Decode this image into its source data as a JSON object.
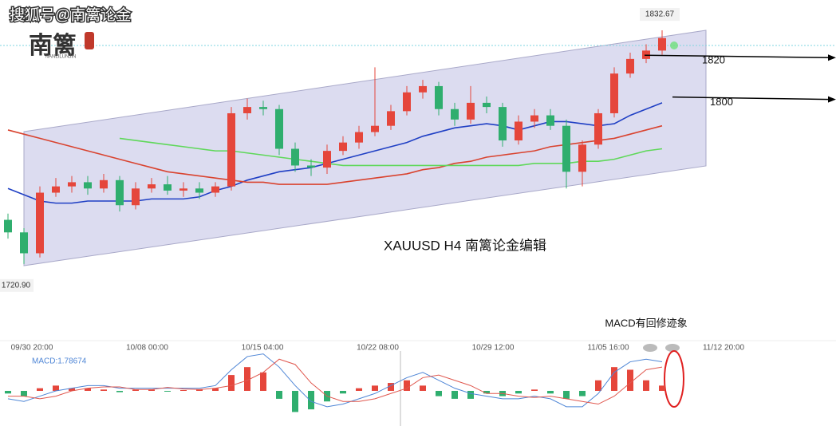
{
  "watermark": "搜狐号@南篱论金",
  "logo": {
    "title": "南篱",
    "subtitle": "NANLILUNJIN"
  },
  "chart_data": {
    "type": "candlestick",
    "title": "XAUUSD  H4  南篱论金编辑",
    "annotation": "MACD有回修迹象",
    "time_labels": [
      "09/30 20:00",
      "10/08 00:00",
      "10/15 04:00",
      "10/22 08:00",
      "10/29 12:00",
      "11/05 16:00",
      "11/12 20:00"
    ],
    "up_color": "#e5463b",
    "down_color": "#2fae6e",
    "open": [
      1742,
      1736,
      1726,
      1755,
      1758,
      1760,
      1757,
      1761,
      1749,
      1757,
      1759,
      1756,
      1757,
      1755,
      1758,
      1793,
      1796,
      1795,
      1776,
      1768,
      1767,
      1775,
      1779,
      1784,
      1787,
      1794,
      1803,
      1806,
      1795,
      1790,
      1798,
      1796,
      1780,
      1789,
      1792,
      1787,
      1765,
      1778,
      1793,
      1812,
      1819,
      1823
    ],
    "high": [
      1745,
      1738,
      1758,
      1762,
      1763,
      1763,
      1764,
      1763,
      1760,
      1762,
      1763,
      1760,
      1760,
      1760,
      1796,
      1800,
      1799,
      1797,
      1779,
      1771,
      1778,
      1782,
      1787,
      1815,
      1797,
      1806,
      1809,
      1808,
      1798,
      1806,
      1801,
      1798,
      1792,
      1795,
      1795,
      1790,
      1780,
      1795,
      1815,
      1822,
      1826,
      1832.67
    ],
    "low": [
      1733,
      1720.9,
      1724,
      1753,
      1755,
      1754,
      1755,
      1746,
      1747,
      1755,
      1754,
      1753,
      1752,
      1753,
      1756,
      1790,
      1792,
      1773,
      1765,
      1763,
      1764,
      1773,
      1776,
      1782,
      1785,
      1792,
      1800,
      1792,
      1787,
      1788,
      1793,
      1777,
      1778,
      1786,
      1785,
      1757,
      1758,
      1776,
      1791,
      1810,
      1817,
      1821
    ],
    "close": [
      1736,
      1726,
      1755,
      1758,
      1760,
      1757,
      1761,
      1749,
      1757,
      1759,
      1756,
      1757,
      1755,
      1758,
      1793,
      1796,
      1795,
      1776,
      1768,
      1767,
      1775,
      1779,
      1784,
      1787,
      1794,
      1803,
      1806,
      1795,
      1790,
      1798,
      1796,
      1780,
      1789,
      1792,
      1787,
      1765,
      1778,
      1793,
      1812,
      1819,
      1823,
      1829
    ],
    "low_label": "1720.90",
    "series": [
      {
        "color": "#1f3fc4",
        "values": [
          1757,
          1754,
          1751,
          1750,
          1750,
          1751,
          1751,
          1751,
          1751,
          1752,
          1752,
          1752,
          1753,
          1756,
          1758,
          1761,
          1763,
          1765,
          1766,
          1767,
          1769,
          1771,
          1773,
          1775,
          1777,
          1779,
          1782,
          1784,
          1786,
          1787,
          1788,
          1787,
          1785,
          1787,
          1789,
          1789,
          1788,
          1787,
          1788,
          1792,
          1795,
          1798
        ]
      },
      {
        "color": "#d9432f",
        "values": [
          1785,
          1783,
          1781,
          1779,
          1777,
          1775,
          1773,
          1771,
          1769,
          1767,
          1765,
          1764,
          1763,
          1762,
          1761,
          1760,
          1760,
          1759,
          1759,
          1759,
          1759,
          1760,
          1761,
          1762,
          1763,
          1764,
          1766,
          1767,
          1769,
          1770,
          1772,
          1773,
          1774,
          1775,
          1777,
          1778,
          1779,
          1780,
          1781,
          1783,
          1785,
          1787
        ]
      },
      {
        "color": "#5fd85a",
        "values": [
          null,
          null,
          null,
          null,
          null,
          null,
          null,
          1781,
          1780,
          1779,
          1778,
          1777,
          1776,
          1775,
          1775,
          1774,
          1773,
          1772,
          1771,
          1770,
          1769,
          1768,
          1768,
          1768,
          1768,
          1768,
          1768,
          1768,
          1768,
          1768,
          1768,
          1768,
          1768,
          1769,
          1769,
          1769,
          1770,
          1770,
          1771,
          1773,
          1775,
          1776
        ]
      }
    ],
    "ylim": [
      1694.5,
      1847.2
    ],
    "levels": [
      1820,
      1800
    ],
    "macd": {
      "label": "MACD:1.78674",
      "hist": [
        -1,
        -2,
        1,
        2,
        1,
        1,
        0.5,
        -0.5,
        0.5,
        0.5,
        -0.3,
        0.3,
        0.5,
        1,
        6,
        9,
        7,
        -3,
        -8,
        -7,
        -4,
        -1,
        1,
        2,
        3,
        4,
        2,
        -2,
        -3,
        -3,
        -1,
        -2,
        -1,
        0.5,
        -1,
        -3,
        -2,
        4,
        9,
        8,
        4,
        2
      ],
      "line": [
        -3,
        -4,
        -2,
        0,
        1,
        2,
        2,
        1,
        1,
        1,
        1,
        1,
        1,
        2,
        8,
        13,
        14,
        9,
        2,
        -4,
        -6,
        -5,
        -3,
        -1,
        2,
        5,
        7,
        4,
        1,
        -1,
        -2,
        -3,
        -3,
        -2,
        -3,
        -6,
        -6,
        -1,
        7,
        11,
        12,
        11
      ],
      "signal": [
        -2,
        -2,
        -3,
        -2,
        0,
        1,
        1.5,
        1.5,
        0.5,
        0.5,
        1.3,
        0.7,
        0.5,
        1,
        2,
        4,
        7,
        12,
        10,
        3,
        -2,
        -4,
        -4,
        -3,
        -1,
        1,
        5,
        6,
        4,
        2,
        -1,
        -1,
        -2,
        -2.5,
        -2,
        -3,
        -4,
        -5,
        -2,
        3,
        8,
        9
      ],
      "line_color": "#4f86d6",
      "signal_color": "#e0584f",
      "y2lim": [
        -13,
        16
      ]
    }
  }
}
